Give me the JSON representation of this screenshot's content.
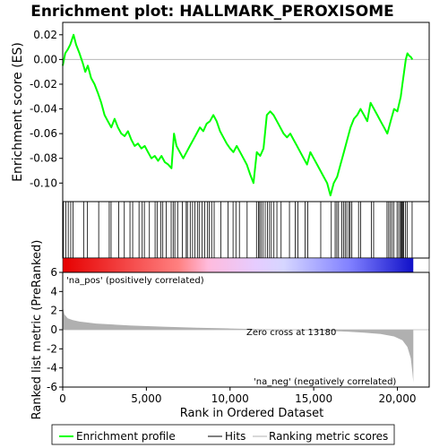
{
  "chart_data": {
    "type": "line",
    "title": "Enrichment plot: HALLMARK_PEROXISOME",
    "colors": {
      "es_line": "#00ff00",
      "hits": "#000000",
      "ranking_fill": "#b0b0b0",
      "pos_label": "#cc0000",
      "neg_label": "#0000cc"
    },
    "es_panel": {
      "ylabel": "Enrichment score (ES)",
      "ylim": [
        -0.115,
        0.03
      ],
      "yticks": [
        0.02,
        0.0,
        -0.02,
        -0.04,
        -0.06,
        -0.08,
        -0.1
      ],
      "ytick_labels": [
        "0.02",
        "0.00",
        "-0.02",
        "-0.04",
        "-0.06",
        "-0.08",
        "-0.10"
      ],
      "series": [
        {
          "name": "Enrichment profile",
          "x": [
            0,
            150,
            300,
            450,
            650,
            800,
            1000,
            1200,
            1350,
            1500,
            1700,
            1900,
            2100,
            2300,
            2500,
            2700,
            2900,
            3100,
            3300,
            3500,
            3700,
            3900,
            4100,
            4300,
            4500,
            4700,
            4900,
            5100,
            5300,
            5500,
            5700,
            5900,
            6100,
            6300,
            6500,
            6650,
            6800,
            7000,
            7200,
            7400,
            7600,
            7800,
            8000,
            8200,
            8400,
            8600,
            8800,
            9000,
            9200,
            9400,
            9600,
            9800,
            10000,
            10200,
            10400,
            10600,
            10800,
            11000,
            11200,
            11400,
            11600,
            11800,
            12000,
            12200,
            12400,
            12600,
            12800,
            13000,
            13200,
            13400,
            13600,
            13800,
            14000,
            14200,
            14400,
            14600,
            14800,
            15000,
            15200,
            15400,
            15600,
            15800,
            16000,
            16200,
            16400,
            16600,
            16800,
            17000,
            17200,
            17400,
            17600,
            17800,
            18000,
            18200,
            18400,
            18600,
            18800,
            19000,
            19200,
            19400,
            19600,
            19800,
            20000,
            20200,
            20300,
            20400,
            20500,
            20600,
            20700,
            20800,
            20900
          ],
          "values": [
            -0.005,
            0.005,
            0.008,
            0.012,
            0.02,
            0.012,
            0.005,
            -0.003,
            -0.01,
            -0.005,
            -0.015,
            -0.02,
            -0.027,
            -0.035,
            -0.045,
            -0.05,
            -0.055,
            -0.048,
            -0.055,
            -0.06,
            -0.062,
            -0.058,
            -0.065,
            -0.07,
            -0.068,
            -0.072,
            -0.07,
            -0.075,
            -0.08,
            -0.078,
            -0.082,
            -0.078,
            -0.083,
            -0.085,
            -0.088,
            -0.06,
            -0.07,
            -0.075,
            -0.08,
            -0.075,
            -0.07,
            -0.065,
            -0.06,
            -0.055,
            -0.058,
            -0.052,
            -0.05,
            -0.045,
            -0.05,
            -0.058,
            -0.063,
            -0.068,
            -0.072,
            -0.075,
            -0.07,
            -0.075,
            -0.08,
            -0.085,
            -0.093,
            -0.1,
            -0.075,
            -0.078,
            -0.072,
            -0.045,
            -0.042,
            -0.045,
            -0.05,
            -0.055,
            -0.06,
            -0.063,
            -0.06,
            -0.065,
            -0.07,
            -0.075,
            -0.08,
            -0.085,
            -0.075,
            -0.08,
            -0.085,
            -0.09,
            -0.095,
            -0.1,
            -0.11,
            -0.1,
            -0.095,
            -0.085,
            -0.075,
            -0.065,
            -0.055,
            -0.048,
            -0.045,
            -0.04,
            -0.045,
            -0.05,
            -0.035,
            -0.04,
            -0.045,
            -0.05,
            -0.055,
            -0.06,
            -0.05,
            -0.04,
            -0.042,
            -0.03,
            -0.02,
            -0.01,
            0.0,
            0.005,
            0.003,
            0.002,
            0.0
          ]
        }
      ]
    },
    "hits": [
      40,
      180,
      330,
      480,
      620,
      1250,
      1480,
      2150,
      2780,
      2890,
      3350,
      3680,
      4020,
      4180,
      4560,
      4750,
      4880,
      5180,
      5520,
      5640,
      5870,
      5980,
      6180,
      6480,
      6600,
      6700,
      6870,
      7150,
      7380,
      7450,
      7620,
      7760,
      7900,
      8070,
      8180,
      8320,
      8480,
      8640,
      8750,
      8900,
      9050,
      9450,
      9880,
      10180,
      10350,
      10560,
      11020,
      11580,
      11700,
      11770,
      11850,
      11960,
      12100,
      12230,
      12360,
      12470,
      12620,
      12800,
      13050,
      13550,
      13900,
      14060,
      14480,
      14650,
      15420,
      16050,
      16280,
      16380,
      16480,
      16680,
      16780,
      16880,
      16980,
      17100,
      17180,
      17280,
      17680,
      17800,
      18450,
      18580,
      19380,
      19480,
      19580,
      19680,
      19780,
      19980,
      20080,
      20180,
      20230,
      20280,
      20330,
      20380,
      20480,
      20580,
      20880
    ],
    "ranking_panel": {
      "ylabel": "Ranked list metric (PreRanked)",
      "ylim": [
        -6,
        6
      ],
      "yticks": [
        6,
        4,
        2,
        0,
        -2,
        -4,
        -6
      ],
      "ytick_labels": [
        "6",
        "4",
        "2",
        "0",
        "-2",
        "-4",
        "-6"
      ],
      "x": [
        0,
        100,
        300,
        600,
        1000,
        2000,
        4000,
        6000,
        8000,
        10000,
        12000,
        13180,
        15000,
        17000,
        18000,
        19000,
        19800,
        20300,
        20600,
        20800,
        20900,
        20950
      ],
      "values": [
        2.4,
        1.6,
        1.2,
        1.0,
        0.85,
        0.65,
        0.45,
        0.32,
        0.22,
        0.13,
        0.05,
        0.0,
        -0.08,
        -0.2,
        -0.3,
        -0.45,
        -0.7,
        -1.1,
        -1.8,
        -3.0,
        -4.5,
        -5.5
      ],
      "zero_cross_label": "Zero cross at 13180",
      "pos_label": "'na_pos' (positively correlated)",
      "neg_label": "'na_neg' (negatively correlated)"
    },
    "x_axis": {
      "label": "Rank in Ordered Dataset",
      "xlim": [
        0,
        21900
      ],
      "ticks": [
        0,
        5000,
        10000,
        15000,
        20000
      ],
      "tick_labels": [
        "0",
        "5,000",
        "10,000",
        "15,000",
        "20,000"
      ],
      "n_genes": 20950
    },
    "legend": {
      "placement": "bottom",
      "entries": [
        "Enrichment profile",
        "Hits",
        "Ranking metric scores"
      ]
    },
    "grid": false
  }
}
